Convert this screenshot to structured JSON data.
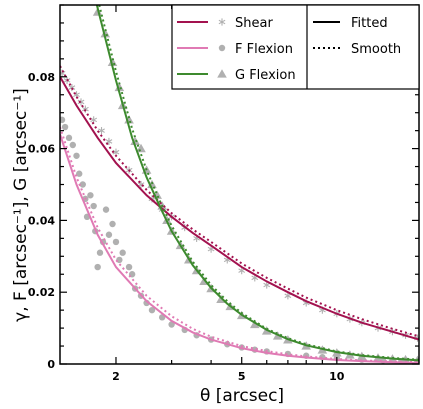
{
  "chart_data": {
    "type": "scatter",
    "title": "",
    "xlabel": "θ [arcsec]",
    "ylabel": "γ, F [arcsec⁻¹], G [arcsec⁻¹]",
    "x_scale": "log",
    "xlim": [
      1.33,
      18.2
    ],
    "ylim": [
      0,
      0.1
    ],
    "x_ticks": [
      2,
      5,
      10
    ],
    "y_ticks": [
      0,
      0.02,
      0.04,
      0.06,
      0.08
    ],
    "y_tick_labels": [
      "0",
      "0.02",
      "0.04",
      "0.06",
      "0.08"
    ],
    "grid": false,
    "legend_position": "top-right",
    "series": [
      {
        "name": "Shear",
        "marker": "asterisk",
        "marker_color": "#b0b0b0",
        "line_color": "#a3124f",
        "points": [
          [
            1.35,
            0.081
          ],
          [
            1.4,
            0.079
          ],
          [
            1.45,
            0.077
          ],
          [
            1.5,
            0.075
          ],
          [
            1.55,
            0.073
          ],
          [
            1.6,
            0.071
          ],
          [
            1.7,
            0.068
          ],
          [
            1.8,
            0.065
          ],
          [
            1.9,
            0.062
          ],
          [
            2.0,
            0.059
          ],
          [
            2.2,
            0.054
          ],
          [
            2.4,
            0.05
          ],
          [
            2.6,
            0.046
          ],
          [
            2.8,
            0.043
          ],
          [
            3.0,
            0.041
          ],
          [
            3.3,
            0.038
          ],
          [
            3.6,
            0.035
          ],
          [
            4.0,
            0.032
          ],
          [
            4.5,
            0.029
          ],
          [
            5.0,
            0.026
          ],
          [
            5.5,
            0.024
          ],
          [
            6.0,
            0.022
          ],
          [
            7.0,
            0.019
          ],
          [
            8.0,
            0.017
          ],
          [
            9.0,
            0.015
          ],
          [
            10.0,
            0.014
          ],
          [
            11.0,
            0.0125
          ],
          [
            12.0,
            0.0115
          ],
          [
            13.5,
            0.01
          ],
          [
            15.0,
            0.009
          ],
          [
            16.5,
            0.008
          ],
          [
            18.0,
            0.0072
          ]
        ],
        "fitted": [
          [
            1.33,
            0.08
          ],
          [
            1.5,
            0.072
          ],
          [
            1.75,
            0.063
          ],
          [
            2.0,
            0.056
          ],
          [
            2.5,
            0.047
          ],
          [
            3.0,
            0.041
          ],
          [
            3.5,
            0.0365
          ],
          [
            4.0,
            0.033
          ],
          [
            5.0,
            0.027
          ],
          [
            6.0,
            0.023
          ],
          [
            7.0,
            0.02
          ],
          [
            8.0,
            0.0175
          ],
          [
            10.0,
            0.014
          ],
          [
            12.0,
            0.0115
          ],
          [
            15.0,
            0.009
          ],
          [
            18.2,
            0.0068
          ]
        ],
        "smooth": [
          [
            1.33,
            0.083
          ],
          [
            1.5,
            0.0745
          ],
          [
            1.75,
            0.065
          ],
          [
            2.0,
            0.058
          ],
          [
            2.5,
            0.0485
          ],
          [
            3.0,
            0.042
          ],
          [
            3.5,
            0.0375
          ],
          [
            4.0,
            0.034
          ],
          [
            5.0,
            0.028
          ],
          [
            6.0,
            0.024
          ],
          [
            7.0,
            0.021
          ],
          [
            8.0,
            0.0185
          ],
          [
            10.0,
            0.015
          ],
          [
            12.0,
            0.0125
          ],
          [
            15.0,
            0.0098
          ],
          [
            18.2,
            0.0077
          ]
        ]
      },
      {
        "name": "F Flexion",
        "marker": "circle",
        "marker_color": "#b0b0b0",
        "line_color": "#e07ab4",
        "points": [
          [
            1.35,
            0.068
          ],
          [
            1.38,
            0.066
          ],
          [
            1.42,
            0.063
          ],
          [
            1.46,
            0.061
          ],
          [
            1.5,
            0.058
          ],
          [
            1.53,
            0.053
          ],
          [
            1.57,
            0.05
          ],
          [
            1.6,
            0.046
          ],
          [
            1.62,
            0.041
          ],
          [
            1.66,
            0.047
          ],
          [
            1.7,
            0.044
          ],
          [
            1.72,
            0.037
          ],
          [
            1.75,
            0.027
          ],
          [
            1.78,
            0.031
          ],
          [
            1.82,
            0.034
          ],
          [
            1.86,
            0.043
          ],
          [
            1.9,
            0.036
          ],
          [
            1.95,
            0.039
          ],
          [
            2.0,
            0.034
          ],
          [
            2.05,
            0.029
          ],
          [
            2.1,
            0.031
          ],
          [
            2.2,
            0.027
          ],
          [
            2.25,
            0.025
          ],
          [
            2.3,
            0.021
          ],
          [
            2.4,
            0.019
          ],
          [
            2.5,
            0.017
          ],
          [
            2.6,
            0.015
          ],
          [
            2.8,
            0.013
          ],
          [
            3.0,
            0.011
          ],
          [
            3.3,
            0.0095
          ],
          [
            3.6,
            0.008
          ],
          [
            4.0,
            0.0068
          ],
          [
            4.5,
            0.0055
          ],
          [
            5.0,
            0.0046
          ],
          [
            5.5,
            0.004
          ],
          [
            6.0,
            0.0035
          ],
          [
            7.0,
            0.0028
          ],
          [
            8.0,
            0.0023
          ],
          [
            9.0,
            0.0019
          ],
          [
            10.0,
            0.0016
          ],
          [
            12.0,
            0.0012
          ],
          [
            14.0,
            0.001
          ],
          [
            16.0,
            0.0008
          ],
          [
            18.0,
            0.0007
          ]
        ],
        "fitted": [
          [
            1.33,
            0.064
          ],
          [
            1.5,
            0.05
          ],
          [
            1.75,
            0.036
          ],
          [
            2.0,
            0.027
          ],
          [
            2.5,
            0.0175
          ],
          [
            3.0,
            0.012
          ],
          [
            3.5,
            0.0088
          ],
          [
            4.0,
            0.0068
          ],
          [
            5.0,
            0.0044
          ],
          [
            6.0,
            0.0031
          ],
          [
            7.0,
            0.0023
          ],
          [
            8.0,
            0.0018
          ],
          [
            10.0,
            0.0011
          ],
          [
            12.0,
            0.0008
          ],
          [
            15.0,
            0.0005
          ],
          [
            18.2,
            0.0003
          ]
        ],
        "smooth": [
          [
            1.33,
            0.066
          ],
          [
            1.5,
            0.052
          ],
          [
            1.75,
            0.038
          ],
          [
            2.0,
            0.029
          ],
          [
            2.5,
            0.019
          ],
          [
            3.0,
            0.0133
          ],
          [
            3.5,
            0.0098
          ],
          [
            4.0,
            0.0076
          ],
          [
            5.0,
            0.005
          ],
          [
            6.0,
            0.0036
          ],
          [
            7.0,
            0.0027
          ],
          [
            8.0,
            0.0021
          ],
          [
            10.0,
            0.0014
          ],
          [
            12.0,
            0.001
          ],
          [
            15.0,
            0.0007
          ],
          [
            18.2,
            0.0005
          ]
        ]
      },
      {
        "name": "G Flexion",
        "marker": "triangle",
        "marker_color": "#b0b0b0",
        "line_color": "#3d8a2e",
        "points": [
          [
            1.75,
            0.098
          ],
          [
            1.85,
            0.092
          ],
          [
            1.95,
            0.084
          ],
          [
            2.05,
            0.077
          ],
          [
            2.1,
            0.072
          ],
          [
            2.2,
            0.068
          ],
          [
            2.3,
            0.062
          ],
          [
            2.4,
            0.06
          ],
          [
            2.5,
            0.054
          ],
          [
            2.6,
            0.05
          ],
          [
            2.7,
            0.047
          ],
          [
            2.8,
            0.044
          ],
          [
            2.9,
            0.04
          ],
          [
            3.0,
            0.037
          ],
          [
            3.2,
            0.033
          ],
          [
            3.4,
            0.029
          ],
          [
            3.6,
            0.026
          ],
          [
            3.8,
            0.023
          ],
          [
            4.0,
            0.021
          ],
          [
            4.3,
            0.018
          ],
          [
            4.6,
            0.016
          ],
          [
            5.0,
            0.0135
          ],
          [
            5.5,
            0.011
          ],
          [
            6.0,
            0.0092
          ],
          [
            6.5,
            0.0078
          ],
          [
            7.0,
            0.0067
          ],
          [
            8.0,
            0.005
          ],
          [
            9.0,
            0.0039
          ],
          [
            10.0,
            0.0031
          ],
          [
            11.0,
            0.0025
          ],
          [
            12.0,
            0.0021
          ],
          [
            13.5,
            0.0017
          ],
          [
            15.0,
            0.0014
          ],
          [
            16.5,
            0.0012
          ],
          [
            18.0,
            0.001
          ]
        ],
        "fitted": [
          [
            1.74,
            0.1
          ],
          [
            2.0,
            0.079
          ],
          [
            2.25,
            0.063
          ],
          [
            2.5,
            0.052
          ],
          [
            2.75,
            0.044
          ],
          [
            3.0,
            0.037
          ],
          [
            3.5,
            0.0275
          ],
          [
            4.0,
            0.0212
          ],
          [
            4.5,
            0.0168
          ],
          [
            5.0,
            0.0137
          ],
          [
            6.0,
            0.0095
          ],
          [
            7.0,
            0.0069
          ],
          [
            8.0,
            0.0052
          ],
          [
            10.0,
            0.0033
          ],
          [
            12.0,
            0.0023
          ],
          [
            15.0,
            0.0015
          ],
          [
            18.2,
            0.001
          ]
        ],
        "smooth": [
          [
            1.77,
            0.1
          ],
          [
            2.0,
            0.0815
          ],
          [
            2.25,
            0.0655
          ],
          [
            2.5,
            0.054
          ],
          [
            2.75,
            0.0455
          ],
          [
            3.0,
            0.0385
          ],
          [
            3.5,
            0.0285
          ],
          [
            4.0,
            0.022
          ],
          [
            4.5,
            0.0175
          ],
          [
            5.0,
            0.0142
          ],
          [
            6.0,
            0.0098
          ],
          [
            7.0,
            0.0072
          ],
          [
            8.0,
            0.0055
          ],
          [
            10.0,
            0.0035
          ],
          [
            12.0,
            0.0025
          ],
          [
            15.0,
            0.0017
          ],
          [
            18.2,
            0.0012
          ]
        ]
      }
    ],
    "line_styles": [
      {
        "name": "Fitted",
        "dash": "solid"
      },
      {
        "name": "Smooth",
        "dash": "dotted"
      }
    ]
  }
}
